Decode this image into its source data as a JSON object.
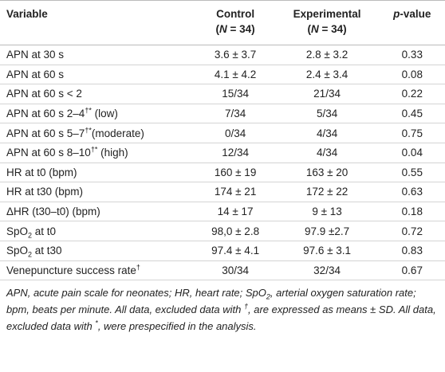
{
  "header": {
    "variable": "Variable",
    "control": {
      "name": "Control",
      "n": [
        {
          "text": "("
        },
        {
          "italic": "N"
        },
        {
          "text": " = 34)"
        }
      ]
    },
    "experimental": {
      "name": "Experimental",
      "n": [
        {
          "text": "("
        },
        {
          "italic": "N"
        },
        {
          "text": " = 34)"
        }
      ]
    },
    "p": [
      {
        "italic": "p"
      },
      {
        "text": "-value"
      }
    ]
  },
  "rows": [
    {
      "label": [
        {
          "text": "APN at 30 s"
        }
      ],
      "control": "3.6 ± 3.7",
      "experimental": "2.8 ± 3.2",
      "p": "0.33"
    },
    {
      "label": [
        {
          "text": "APN at 60 s"
        }
      ],
      "control": "4.1 ± 4.2",
      "experimental": "2.4 ± 3.4",
      "p": "0.08"
    },
    {
      "label": [
        {
          "text": "APN at 60 s < 2"
        }
      ],
      "control": "15/34",
      "experimental": "21/34",
      "p": "0.22"
    },
    {
      "label": [
        {
          "text": "APN at 60 s 2–4"
        },
        {
          "sup": "†*"
        },
        {
          "text": " (low)"
        }
      ],
      "control": "7/34",
      "experimental": "5/34",
      "p": "0.45"
    },
    {
      "label": [
        {
          "text": "APN at 60 s 5–7"
        },
        {
          "sup": "†*"
        },
        {
          "text": "(moderate)"
        }
      ],
      "control": "0/34",
      "experimental": "4/34",
      "p": "0.75"
    },
    {
      "label": [
        {
          "text": "APN at 60 s 8–10"
        },
        {
          "sup": "†*"
        },
        {
          "text": " (high)"
        }
      ],
      "control": "12/34",
      "experimental": "4/34",
      "p": "0.04"
    },
    {
      "label": [
        {
          "text": "HR at t0 (bpm)"
        }
      ],
      "control": "160 ± 19",
      "experimental": "163 ± 20",
      "p": "0.55"
    },
    {
      "label": [
        {
          "text": "HR at t30 (bpm)"
        }
      ],
      "control": "174 ± 21",
      "experimental": "172 ± 22",
      "p": "0.63"
    },
    {
      "label": [
        {
          "text": "ΔHR (t30–t0) (bpm)"
        }
      ],
      "control": "14 ± 17",
      "experimental": "9 ± 13",
      "p": "0.18"
    },
    {
      "label": [
        {
          "text": "SpO"
        },
        {
          "sub": "2"
        },
        {
          "text": " at t0"
        }
      ],
      "control": "98,0 ± 2.8",
      "experimental": "97.9 ±2.7",
      "p": "0.72"
    },
    {
      "label": [
        {
          "text": "SpO"
        },
        {
          "sub": "2"
        },
        {
          "text": " at t30"
        }
      ],
      "control": "97.4 ± 4.1",
      "experimental": "97.6 ± 3.1",
      "p": "0.83"
    },
    {
      "label": [
        {
          "text": "Venepuncture success rate"
        },
        {
          "sup": "†"
        }
      ],
      "control": "30/34",
      "experimental": "32/34",
      "p": "0.67"
    }
  ],
  "footnote": [
    {
      "text": "APN, acute pain scale for neonates; HR, heart rate; SpO"
    },
    {
      "sub": "2"
    },
    {
      "text": ", arterial oxygen saturation rate; bpm, beats per minute. All data, excluded data with "
    },
    {
      "sup": "†"
    },
    {
      "text": ", are expressed as means ± SD. All data, excluded data with "
    },
    {
      "sup": "*"
    },
    {
      "text": ", were prespecified in the analysis."
    }
  ]
}
